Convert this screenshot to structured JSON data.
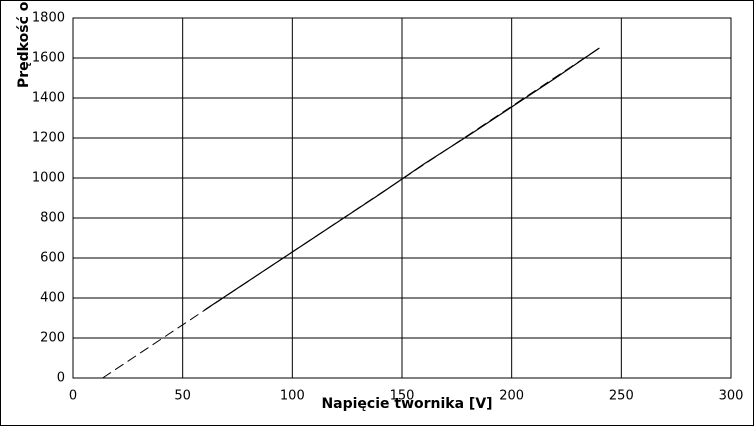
{
  "chart_data": {
    "type": "line",
    "x_label": "Napięcie twornika [V]",
    "y_label": "Prędkość o",
    "x": [
      60,
      80,
      100,
      120,
      140,
      160,
      180,
      200,
      220,
      240
    ],
    "series": [
      {
        "color": "#000000",
        "values": [
          340,
          485,
          630,
          775,
          920,
          1070,
          1210,
          1355,
          1500,
          1650
        ]
      }
    ],
    "trendline": {
      "color": "#000000",
      "x": [
        13.5,
        240
      ],
      "values": [
        0,
        1650
      ]
    },
    "xlim": [
      0,
      300
    ],
    "xticks": [
      0,
      50,
      100,
      150,
      200,
      250,
      300
    ],
    "ylim": [
      0,
      1800
    ],
    "yticks": [
      0,
      200,
      400,
      600,
      800,
      1000,
      1200,
      1400,
      1600,
      1800
    ],
    "grid": true
  }
}
